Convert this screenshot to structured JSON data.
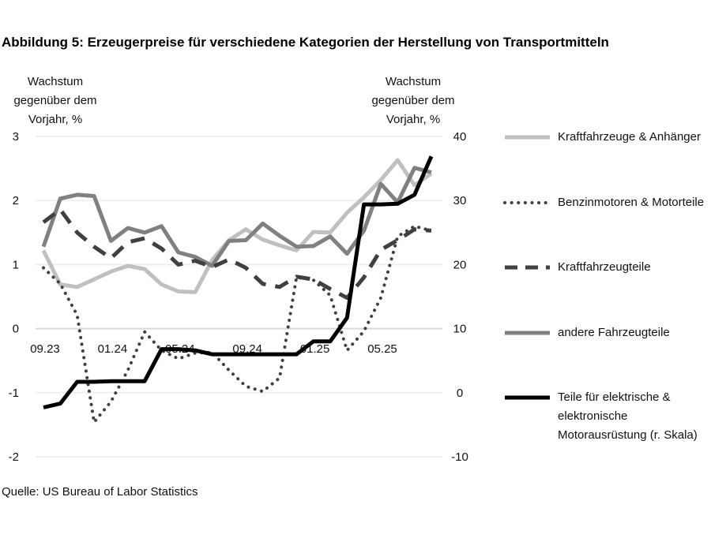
{
  "chart_data": {
    "type": "line",
    "title": "Abbildung 5: Erzeugerpreise für verschiedene Kategorien der Herstellung von Transportmitteln",
    "ylabel_left": "Wachstum gegenüber dem Vorjahr, %",
    "ylabel_right": "Wachstum gegenüber dem Vorjahr, %",
    "ylim_left": [
      -2,
      3
    ],
    "ylim_right": [
      -10,
      40
    ],
    "yticks_left": [
      "3",
      "2",
      "1",
      "0",
      "-1",
      "-2"
    ],
    "yticks_right": [
      "40",
      "30",
      "20",
      "10",
      "0",
      "-10"
    ],
    "x": [
      "09.23",
      "10.23",
      "11.23",
      "12.23",
      "01.24",
      "02.24",
      "03.24",
      "04.24",
      "05.24",
      "06.24",
      "07.24",
      "08.24",
      "09.24",
      "10.24",
      "11.24",
      "12.24",
      "01.25",
      "02.25",
      "03.25",
      "04.25",
      "05.25",
      "06.25",
      "07.25",
      "08.25"
    ],
    "xtick_labels": [
      "09.23",
      "01.24",
      "05.24",
      "09.24",
      "01.25",
      "05.25"
    ],
    "grid": true,
    "legend_position": "right",
    "series": [
      {
        "name": "Kraftfahrzeuge & Anhänger",
        "axis": "left",
        "color": "#c0c0c0",
        "style": "solid",
        "values": [
          1.22,
          0.69,
          0.65,
          0.77,
          0.89,
          0.98,
          0.93,
          0.69,
          0.58,
          0.57,
          1.07,
          1.38,
          1.55,
          1.39,
          1.3,
          1.22,
          1.51,
          1.5,
          1.81,
          2.05,
          2.32,
          2.63,
          2.24,
          2.42
        ]
      },
      {
        "name": "Benzinmotoren & Motorteile",
        "axis": "left",
        "color": "#404040",
        "style": "dotted",
        "values": [
          0.95,
          0.7,
          0.21,
          -1.46,
          -1.14,
          -0.65,
          -0.05,
          -0.34,
          -0.47,
          -0.38,
          -0.37,
          -0.65,
          -0.9,
          -0.98,
          -0.77,
          0.8,
          0.76,
          0.52,
          -0.34,
          -0.04,
          0.48,
          1.44,
          1.6,
          1.53
        ]
      },
      {
        "name": "Kraftfahrzeugteile",
        "axis": "left",
        "color": "#404040",
        "style": "dashed",
        "values": [
          1.66,
          1.86,
          1.5,
          1.28,
          1.1,
          1.35,
          1.41,
          1.25,
          1.0,
          1.06,
          0.96,
          1.08,
          0.95,
          0.7,
          0.65,
          0.81,
          0.77,
          0.62,
          0.48,
          0.8,
          1.23,
          1.38,
          1.55,
          1.53
        ]
      },
      {
        "name": "andere Fahrzeugteile",
        "axis": "left",
        "color": "#808080",
        "style": "solid",
        "values": [
          1.28,
          2.03,
          2.09,
          2.07,
          1.37,
          1.57,
          1.5,
          1.6,
          1.19,
          1.12,
          0.98,
          1.37,
          1.38,
          1.64,
          1.45,
          1.28,
          1.29,
          1.44,
          1.17,
          1.53,
          2.26,
          1.97,
          2.51,
          2.44
        ]
      },
      {
        "name": "Teile für elektrische & elektronische Motorausrüstung (r. Skala)",
        "axis": "right",
        "color": "#000000",
        "style": "solid",
        "values": [
          -2.3,
          -1.7,
          1.7,
          1.7,
          1.8,
          1.8,
          1.8,
          6.8,
          6.8,
          6.6,
          6.0,
          6.0,
          6.0,
          6.0,
          6.0,
          6.0,
          8.0,
          8.0,
          11.7,
          29.4,
          29.4,
          29.5,
          30.9,
          36.9
        ]
      }
    ],
    "source": "Quelle: US Bureau of Labor Statistics"
  }
}
